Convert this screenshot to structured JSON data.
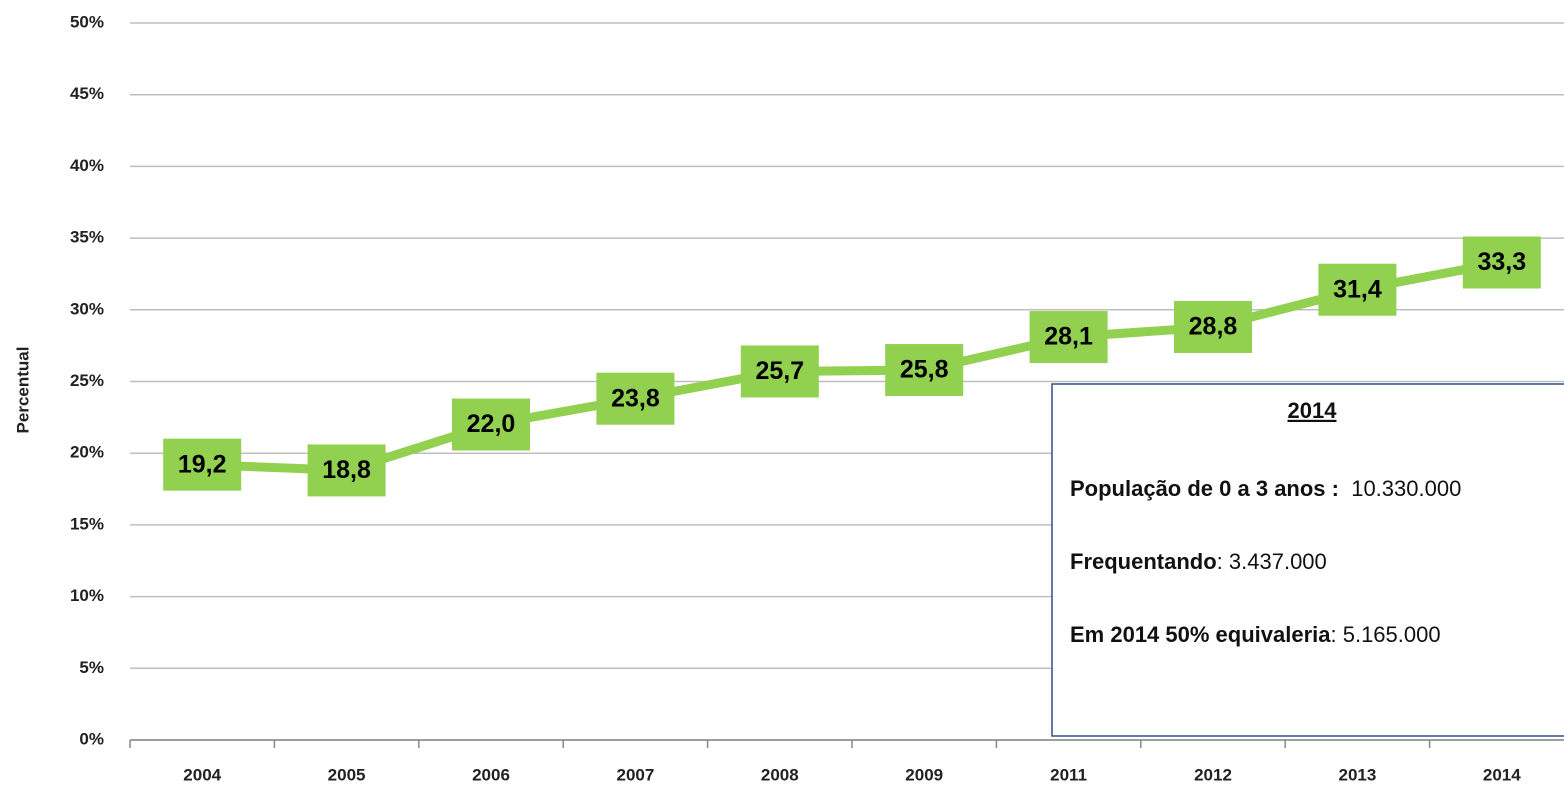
{
  "chart_data": {
    "type": "line",
    "ylabel": "Percentual",
    "categories": [
      "2004",
      "2005",
      "2006",
      "2007",
      "2008",
      "2009",
      "2011",
      "2012",
      "2013",
      "2014"
    ],
    "values": [
      19.2,
      18.8,
      22.0,
      23.8,
      25.7,
      25.8,
      28.1,
      28.8,
      31.4,
      33.3
    ],
    "value_labels": [
      "19,2",
      "18,8",
      "22,0",
      "23,8",
      "25,7",
      "25,8",
      "28,1",
      "28,8",
      "31,4",
      "33,3"
    ],
    "color": "#92d050",
    "ylim": [
      0,
      50
    ],
    "yticks": [
      {
        "value": 0,
        "label": "0%"
      },
      {
        "value": 5,
        "label": "5%"
      },
      {
        "value": 10,
        "label": "10%"
      },
      {
        "value": 15,
        "label": "15%"
      },
      {
        "value": 20,
        "label": "20%"
      },
      {
        "value": 25,
        "label": "25%"
      },
      {
        "value": 30,
        "label": "30%"
      },
      {
        "value": 35,
        "label": "35%"
      },
      {
        "value": 40,
        "label": "40%"
      },
      {
        "value": 45,
        "label": "45%"
      },
      {
        "value": 50,
        "label": "50%"
      }
    ],
    "grid": true,
    "annotation": {
      "title": "2014",
      "lines": [
        {
          "label": "População de 0 a 3 anos :",
          "value": "  10.330.000"
        },
        {
          "label": "Frequentando",
          "value": ": 3.437.000"
        },
        {
          "label": "Em 2014 50% equivaleria",
          "value": ": 5.165.000"
        }
      ]
    }
  }
}
